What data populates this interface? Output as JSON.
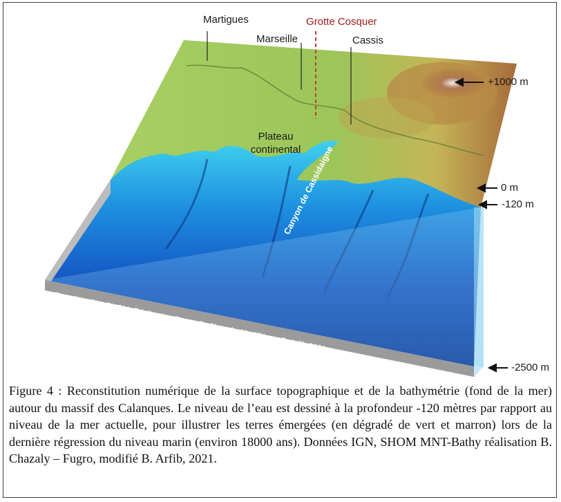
{
  "figure": {
    "labels": {
      "martigues": "Martigues",
      "grotte": "Grotte Cosquer",
      "marseille": "Marseille",
      "cassis": "Cassis",
      "plateau_line1": "Plateau",
      "plateau_line2": "continental",
      "canyon": "Canyon de Cassidaigne",
      "credit": "Données IGN, SHOM, Réalisation Fugro, B. Chazaly, Modifié par B. Arfib 2021"
    },
    "depth_markers": {
      "plus1000": "+1000 m",
      "zero": "0 m",
      "minus120": "-120 m",
      "minus2500": "-2500 m"
    },
    "colors": {
      "land_green": "#9cc65a",
      "land_brown": "#a86b3a",
      "sea_shallow": "#22b8e0",
      "sea_deep": "#0a2a8c",
      "water_box": "#bfe6f5",
      "grotte_red": "#9b1b1b"
    }
  },
  "caption": "Figure 4 : Reconstitution numérique de la surface topographique et de la bathymétrie (fond de la mer) autour du massif des Calanques. Le niveau de l’eau est dessiné à la profondeur -120 mètres par rapport au niveau de la mer actuelle, pour illustrer les terres émergées (en dégradé de vert et marron) lors de la dernière régression du niveau marin (environ 18000 ans). Données IGN, SHOM MNT-Bathy réalisation B. Chazaly – Fugro, modifié B. Arfib, 2021."
}
